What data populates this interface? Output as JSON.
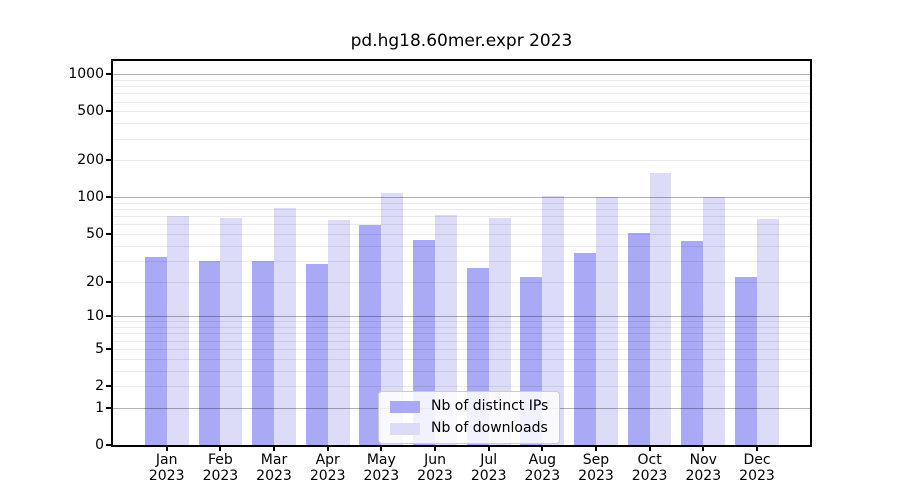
{
  "title": "pd.hg18.60mer.expr 2023",
  "legend": {
    "items": [
      {
        "label": "Nb of distinct IPs",
        "series": "ips"
      },
      {
        "label": "Nb of downloads",
        "series": "downloads"
      }
    ],
    "position": "lower center"
  },
  "chart_data": {
    "type": "bar",
    "title": "pd.hg18.60mer.expr 2023",
    "categories": [
      "Jan 2023",
      "Feb 2023",
      "Mar 2023",
      "Apr 2023",
      "May 2023",
      "Jun 2023",
      "Jul 2023",
      "Aug 2023",
      "Sep 2023",
      "Oct 2023",
      "Nov 2023",
      "Dec 2023"
    ],
    "x_tick_months": [
      "Jan",
      "Feb",
      "Mar",
      "Apr",
      "May",
      "Jun",
      "Jul",
      "Aug",
      "Sep",
      "Oct",
      "Nov",
      "Dec"
    ],
    "x_tick_year": "2023",
    "series": [
      {
        "name": "Nb of distinct IPs",
        "key": "ips",
        "values": [
          32,
          30,
          30,
          28,
          59,
          45,
          26,
          22,
          35,
          51,
          44,
          22
        ]
      },
      {
        "name": "Nb of downloads",
        "key": "downloads",
        "values": [
          70,
          68,
          82,
          65,
          108,
          72,
          68,
          102,
          100,
          159,
          100,
          67
        ]
      }
    ],
    "xlabel": "",
    "ylabel": "",
    "yscale": "log1p",
    "y_ticks": [
      0,
      1,
      2,
      5,
      10,
      20,
      50,
      100,
      200,
      500,
      1000
    ],
    "y_major_gridlines": [
      1,
      10,
      100,
      1000
    ],
    "ylim": [
      0,
      1280
    ],
    "grid": "on, drawn over bars",
    "legend_position": "lower center",
    "colors": {
      "ips": "#a9a9f6",
      "downloads": "#dcdcf8"
    }
  }
}
